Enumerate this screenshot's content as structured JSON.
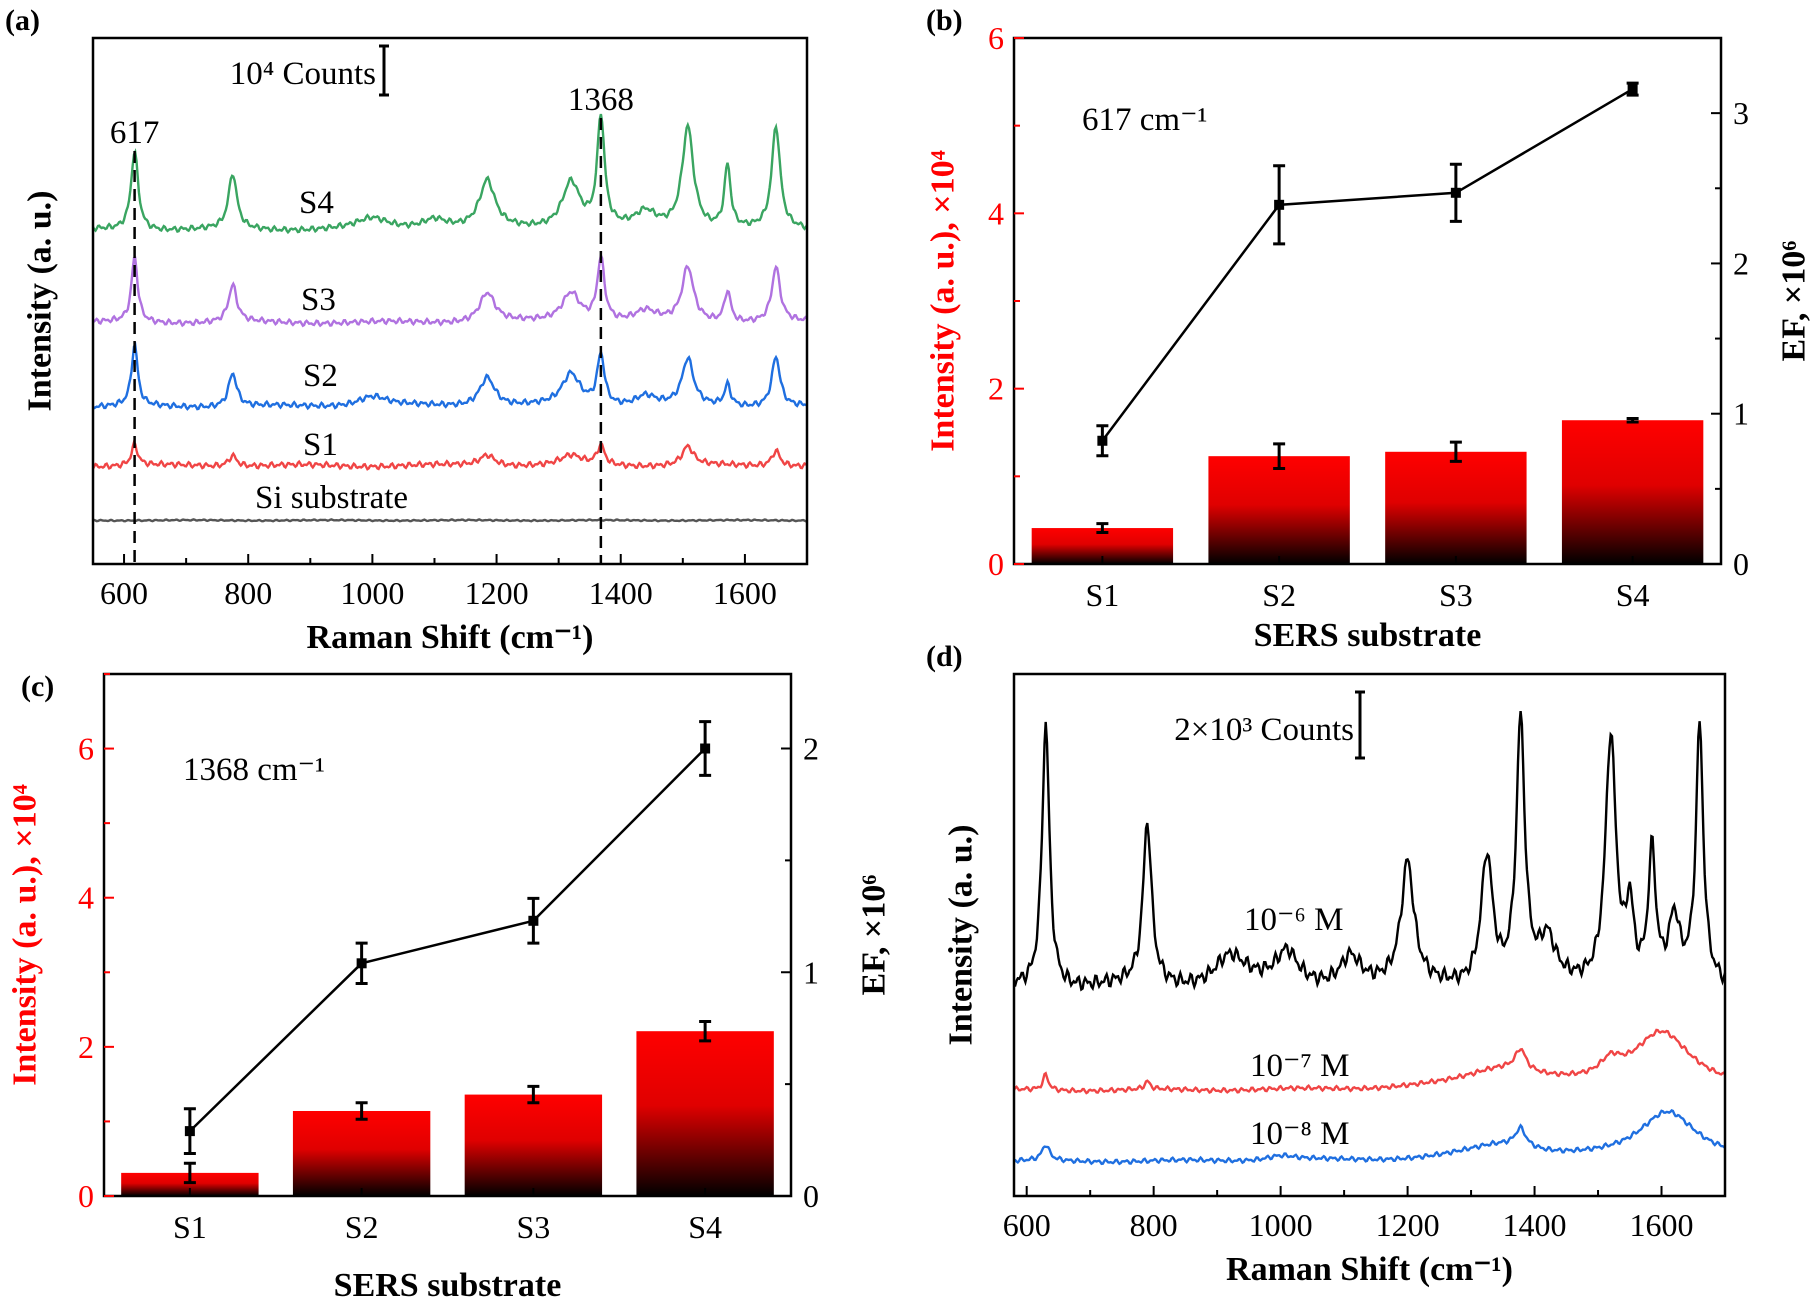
{
  "chart_data": [
    {
      "id": "a",
      "type": "line",
      "panel_label": "(a)",
      "xlabel": "Raman Shift (cm⁻¹)",
      "ylabel": "Intensity (a. u.)",
      "xlim": [
        550,
        1700
      ],
      "xticks": [
        600,
        800,
        1000,
        1200,
        1400,
        1600
      ],
      "ylim": [
        0,
        100
      ],
      "scale_bar": "10⁴ Counts",
      "peak_markers": [
        {
          "label": "617",
          "x": 617
        },
        {
          "label": "1368",
          "x": 1368
        }
      ],
      "series": [
        {
          "name": "S4",
          "color": "#3aa561",
          "baseline": 63.5,
          "peaks": [
            [
              617,
              15,
              14
            ],
            [
              775,
              10.5,
              16
            ],
            [
              1185,
              9,
              30
            ],
            [
              1320,
              9,
              35
            ],
            [
              1368,
              21,
              14
            ],
            [
              1508,
              19.5,
              22
            ],
            [
              1572,
              12,
              12
            ],
            [
              1650,
              19.5,
              16
            ],
            [
              1000,
              2,
              60
            ],
            [
              1100,
              2,
              50
            ],
            [
              1440,
              3,
              40
            ]
          ]
        },
        {
          "name": "S3",
          "color": "#b072e0",
          "baseline": 45.9,
          "peaks": [
            [
              617,
              12.4,
              12
            ],
            [
              775,
              7,
              16
            ],
            [
              1185,
              5.6,
              30
            ],
            [
              1320,
              5.6,
              35
            ],
            [
              1368,
              12,
              14
            ],
            [
              1508,
              10.4,
              22
            ],
            [
              1572,
              6,
              12
            ],
            [
              1650,
              10.4,
              16
            ],
            [
              1440,
              2,
              40
            ]
          ]
        },
        {
          "name": "S2",
          "color": "#1f6fe0",
          "baseline": 29.9,
          "peaks": [
            [
              617,
              11.6,
              12
            ],
            [
              775,
              6.4,
              16
            ],
            [
              1185,
              5.6,
              30
            ],
            [
              1320,
              6,
              35
            ],
            [
              1368,
              9.6,
              14
            ],
            [
              1508,
              8.8,
              22
            ],
            [
              1572,
              4,
              12
            ],
            [
              1650,
              9.6,
              16
            ],
            [
              1000,
              2,
              60
            ],
            [
              1440,
              2,
              40
            ]
          ]
        },
        {
          "name": "S1",
          "color": "#f04545",
          "baseline": 18.7,
          "peaks": [
            [
              617,
              4,
              12
            ],
            [
              775,
              2.1,
              16
            ],
            [
              1185,
              2.1,
              30
            ],
            [
              1320,
              1.8,
              40
            ],
            [
              1368,
              3.7,
              14
            ],
            [
              1508,
              3.6,
              22
            ],
            [
              1650,
              3,
              16
            ]
          ]
        },
        {
          "name": "Si substrate",
          "color": "#555555",
          "baseline": 8.3,
          "peaks": []
        }
      ]
    },
    {
      "id": "b",
      "type": "bar",
      "panel_label": "(b)",
      "annotation": "617 cm⁻¹",
      "xlabel": "SERS substrate",
      "ylabel": "Intensity (a. u.), ×10⁴",
      "y2label": "EF, ×10⁶",
      "categories": [
        "S1",
        "S2",
        "S3",
        "S4"
      ],
      "ylim": [
        0,
        6
      ],
      "yticks": [
        0,
        2,
        4,
        6
      ],
      "y2lim": [
        0,
        3.5
      ],
      "y2ticks": [
        0,
        1,
        2,
        3
      ],
      "intensity": [
        0.41,
        1.23,
        1.28,
        1.64
      ],
      "intensity_err": [
        0.05,
        0.14,
        0.11,
        0.02
      ],
      "ef": [
        0.82,
        2.39,
        2.47,
        3.16
      ],
      "ef_err": [
        0.1,
        0.26,
        0.19,
        0.04
      ]
    },
    {
      "id": "c",
      "type": "bar",
      "panel_label": "(c)",
      "annotation": "1368 cm⁻¹",
      "xlabel": "SERS substrate",
      "ylabel": "Intensity (a. u.), ×10⁴",
      "y2label": "EF, ×10⁶",
      "categories": [
        "S1",
        "S2",
        "S3",
        "S4"
      ],
      "ylim": [
        0,
        7
      ],
      "yticks": [
        0,
        2,
        4,
        6
      ],
      "y2lim": [
        0,
        2.333
      ],
      "y2ticks": [
        0,
        1,
        2
      ],
      "intensity": [
        0.31,
        1.14,
        1.36,
        2.21
      ],
      "intensity_err": [
        0.13,
        0.11,
        0.11,
        0.13
      ],
      "ef": [
        0.29,
        1.04,
        1.23,
        2.0
      ],
      "ef_err": [
        0.1,
        0.09,
        0.1,
        0.12
      ]
    },
    {
      "id": "d",
      "type": "line",
      "panel_label": "(d)",
      "xlabel": "Raman Shift (cm⁻¹)",
      "ylabel": "Intensity (a. u.)",
      "xlim": [
        580,
        1700
      ],
      "xticks": [
        600,
        800,
        1000,
        1200,
        1400,
        1600
      ],
      "ylim": [
        0,
        100
      ],
      "scale_bar": "2×10³ Counts",
      "series": [
        {
          "name": "10⁻⁶ M",
          "color": "#000000",
          "baseline": 40,
          "peaks": [
            [
              630,
              51,
              14
            ],
            [
              790,
              31,
              16
            ],
            [
              1200,
              23,
              24
            ],
            [
              1325,
              25,
              22
            ],
            [
              1378,
              50,
              16
            ],
            [
              1520,
              48,
              20
            ],
            [
              1550,
              14,
              14
            ],
            [
              1585,
              25,
              14
            ],
            [
              1620,
              12,
              20
            ],
            [
              1660,
              49,
              14
            ],
            [
              920,
              6,
              60
            ],
            [
              1010,
              6,
              40
            ],
            [
              1110,
              6,
              40
            ],
            [
              1420,
              8,
              30
            ]
          ]
        },
        {
          "name": "10⁻⁷ M",
          "color": "#f04545",
          "baseline": 20.2,
          "peaks": [
            [
              630,
              3,
              10
            ],
            [
              790,
              1.5,
              10
            ],
            [
              1378,
              4,
              20
            ],
            [
              1350,
              4,
              150
            ],
            [
              1600,
              11,
              110
            ],
            [
              1520,
              3,
              40
            ]
          ]
        },
        {
          "name": "10⁻⁸ M",
          "color": "#1f6fe0",
          "baseline": 6.6,
          "peaks": [
            [
              630,
              3,
              14
            ],
            [
              1378,
              3.5,
              20
            ],
            [
              1350,
              3,
              150
            ],
            [
              1610,
              9.5,
              110
            ],
            [
              1000,
              1,
              60
            ]
          ]
        }
      ]
    }
  ]
}
